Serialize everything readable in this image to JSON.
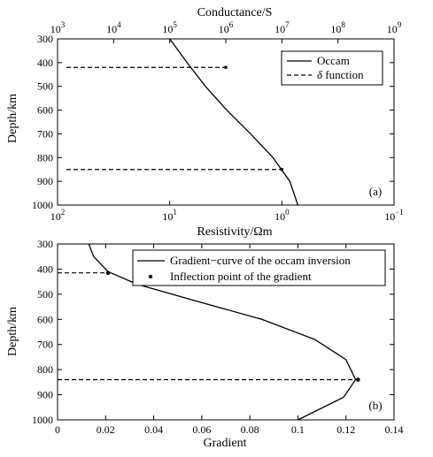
{
  "charts": [
    {
      "panel_label": "(a)",
      "top_axis_label": "Conductance/S",
      "bottom_axis_label": "Resistivity/Ωm",
      "left_axis_label": "Depth/km",
      "top_ticks": [
        {
          "base": "10",
          "exp": "3"
        },
        {
          "base": "10",
          "exp": "4"
        },
        {
          "base": "10",
          "exp": "5"
        },
        {
          "base": "10",
          "exp": "6"
        },
        {
          "base": "10",
          "exp": "7"
        },
        {
          "base": "10",
          "exp": "8"
        },
        {
          "base": "10",
          "exp": "9"
        }
      ],
      "bottom_ticks": [
        {
          "base": "10",
          "exp": "2"
        },
        {
          "base": "10",
          "exp": "1"
        },
        {
          "base": "10",
          "exp": "0"
        },
        {
          "base": "10",
          "exp": "−1"
        }
      ],
      "y_ticks": [
        "300",
        "400",
        "500",
        "600",
        "700",
        "800",
        "900",
        "1000"
      ],
      "legend": [
        {
          "label_prefix": "",
          "label_italic": "",
          "label_rest": "Occam",
          "style": "solid"
        },
        {
          "label_prefix": "",
          "label_italic": "δ",
          "label_rest": " function",
          "style": "dashed"
        }
      ]
    },
    {
      "panel_label": "(b)",
      "bottom_axis_label": "Gradient",
      "left_axis_label": "Depth/km",
      "x_ticks": [
        "0",
        "0.02",
        "0.04",
        "0.06",
        "0.08",
        "0.1",
        "0.12",
        "0.14"
      ],
      "y_ticks": [
        "300",
        "400",
        "500",
        "600",
        "700",
        "800",
        "900",
        "1000"
      ],
      "legend": [
        {
          "label": "Gradient−curve of the occam inversion",
          "style": "solid"
        },
        {
          "label": "Inflection point of the gradient",
          "style": "dot"
        }
      ]
    }
  ],
  "chart_data": [
    {
      "type": "line",
      "x_axis": "resistivity",
      "x_scale": "log",
      "x_reversed": true,
      "xlim": [
        100,
        0.1
      ],
      "top_axis": "conductance",
      "top_xlim": [
        1000,
        1000000000
      ],
      "ylim": [
        1000,
        300
      ],
      "y_reversed": true,
      "legend_position": "top-right",
      "series": [
        {
          "name": "Occam",
          "style": "solid",
          "points": [
            {
              "x": 10.0,
              "y": 300
            },
            {
              "x": 7.0,
              "y": 400
            },
            {
              "x": 4.8,
              "y": 500
            },
            {
              "x": 3.1,
              "y": 600
            },
            {
              "x": 1.9,
              "y": 700
            },
            {
              "x": 1.2,
              "y": 800
            },
            {
              "x": 0.85,
              "y": 900
            },
            {
              "x": 0.72,
              "y": 1000
            }
          ]
        },
        {
          "name": "δ function",
          "style": "dashed",
          "top_axis_segments": [
            {
              "y": 420,
              "x_from": 1000,
              "x_to": 1000000
            },
            {
              "y": 850,
              "x_from": 1000,
              "x_to": 10000000
            }
          ]
        }
      ]
    },
    {
      "type": "line",
      "xlim": [
        0,
        0.14
      ],
      "ylim": [
        1000,
        300
      ],
      "y_reversed": true,
      "legend_position": "top-right",
      "series": [
        {
          "name": "Gradient−curve of the occam inversion",
          "style": "solid",
          "points": [
            {
              "x": 0.013,
              "y": 300
            },
            {
              "x": 0.015,
              "y": 350
            },
            {
              "x": 0.021,
              "y": 410
            },
            {
              "x": 0.033,
              "y": 460
            },
            {
              "x": 0.055,
              "y": 520
            },
            {
              "x": 0.085,
              "y": 600
            },
            {
              "x": 0.107,
              "y": 680
            },
            {
              "x": 0.12,
              "y": 760
            },
            {
              "x": 0.124,
              "y": 840
            },
            {
              "x": 0.119,
              "y": 910
            },
            {
              "x": 0.1,
              "y": 1000
            }
          ]
        },
        {
          "name": "Inflection point of the gradient",
          "style": "marker",
          "points": [
            {
              "x": 0.021,
              "y": 415
            },
            {
              "x": 0.125,
              "y": 840
            }
          ],
          "guide_lines": [
            415,
            840
          ]
        }
      ]
    }
  ]
}
